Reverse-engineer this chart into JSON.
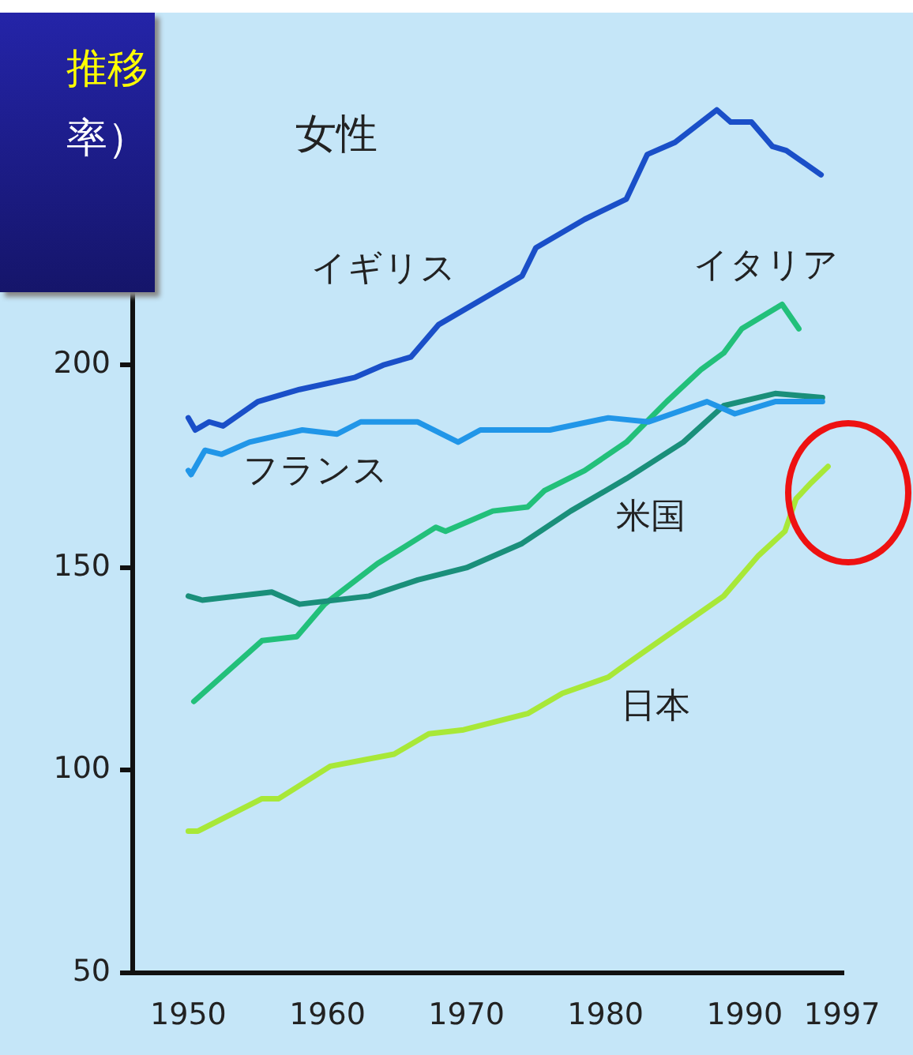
{
  "chart_data": {
    "type": "line",
    "title": "推移",
    "subtitle": "率）",
    "annotations": [
      "女性"
    ],
    "xlim": [
      1946,
      1997
    ],
    "xticks": [
      1950,
      1960,
      1970,
      1980,
      1990,
      1997
    ],
    "ylim": [
      50,
      280
    ],
    "yticks": [
      50,
      100,
      150,
      200
    ],
    "marker": "none",
    "line_style": "solid",
    "series": [
      {
        "name": "イギリス",
        "color": "#1a4fc8",
        "x": [
          1950,
          1950.5,
          1951.5,
          1952.5,
          1955,
          1958,
          1962,
          1964,
          1966,
          1968,
          1974,
          1975,
          1978.5,
          1981.5,
          1983,
          1985,
          1988,
          1989,
          1990.5,
          1992,
          1993,
          1995.5
        ],
        "values": [
          187,
          184,
          186,
          185,
          191,
          194,
          197,
          200,
          202,
          210,
          222,
          229,
          236,
          241,
          252,
          255,
          263,
          260,
          260,
          254,
          253,
          247
        ]
      },
      {
        "name": "フランス",
        "color": "#2196e8",
        "x": [
          1950,
          1950.2,
          1951.2,
          1952.4,
          1954.4,
          1958.2,
          1960.7,
          1962.4,
          1966.5,
          1969.4,
          1971,
          1976,
          1980.2,
          1983.1,
          1987.3,
          1989.3,
          1992.2,
          1995.6
        ],
        "values": [
          174,
          173,
          179,
          178,
          181,
          184,
          183,
          186,
          186,
          181,
          184,
          184,
          187,
          186,
          191,
          188,
          191,
          191
        ]
      },
      {
        "name": "米国",
        "color": "#1a8f7a",
        "x": [
          1950,
          1951,
          1956,
          1958,
          1963,
          1966.5,
          1970,
          1974,
          1977.5,
          1981.5,
          1985.6,
          1988.5,
          1992.2,
          1995.6
        ],
        "values": [
          143,
          142,
          144,
          141,
          143,
          147,
          150,
          156,
          164,
          172,
          181,
          190,
          193,
          192
        ]
      },
      {
        "name": "イタリア",
        "color": "#22c07a",
        "x": [
          1950.4,
          1955.3,
          1957.8,
          1959.8,
          1963.6,
          1967.8,
          1968.5,
          1971.9,
          1974.4,
          1975.6,
          1978.5,
          1981.5,
          1984.4,
          1986.9,
          1988.5,
          1989.8,
          1992.7,
          1993.9
        ],
        "values": [
          117,
          132,
          133,
          141,
          151,
          160,
          159,
          164,
          165,
          169,
          174,
          181,
          191,
          199,
          203,
          209,
          215,
          209
        ]
      },
      {
        "name": "日本",
        "color": "#a8e838",
        "x": [
          1950,
          1950.7,
          1955.3,
          1956.5,
          1960.2,
          1964.8,
          1967.3,
          1969.8,
          1974.4,
          1976.9,
          1980.2,
          1981,
          1983.5,
          1988.5,
          1991,
          1992.9,
          1993.7,
          1994.8,
          1996
        ],
        "values": [
          85,
          85,
          93,
          93,
          101,
          104,
          109,
          110,
          114,
          119,
          123,
          125,
          131,
          143,
          153,
          159,
          167,
          171,
          175
        ]
      }
    ]
  }
}
